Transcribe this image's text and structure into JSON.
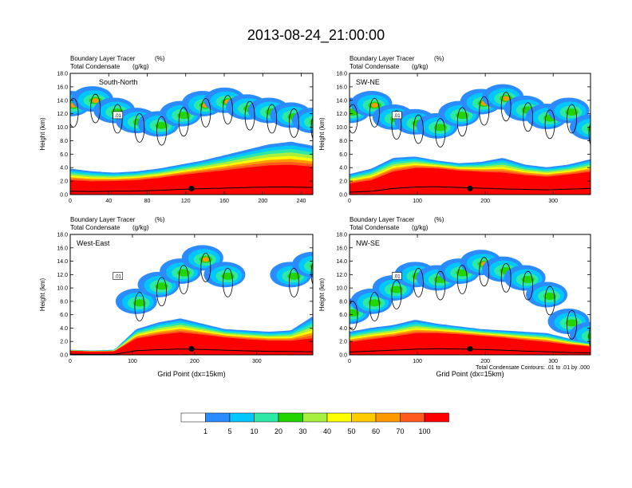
{
  "page_title": "2013-08-24_21:00:00",
  "chart_data": {
    "type": "heatmap",
    "title": "2013-08-24_21:00:00",
    "fill_variable": "Boundary Layer Tracer",
    "fill_units": "(%)",
    "contour_variable": "Total Condensate",
    "contour_units": "(g/kg)",
    "ylabel": "Height (km)",
    "xlabel": "Grid Point (dx=15km)",
    "ylim": [
      0,
      18
    ],
    "y_ticks": [
      "0.0",
      "2.0",
      "4.0",
      "6.0",
      "8.0",
      "10.0",
      "12.0",
      "14.0",
      "16.0",
      "18.0"
    ],
    "contour_note": "Total Condensate Contours: .01 to .01 by .000",
    "contour_label": ".01",
    "colorbar": {
      "levels": [
        "1",
        "5",
        "10",
        "20",
        "30",
        "40",
        "50",
        "60",
        "70",
        "100"
      ],
      "colors": [
        "#ffffff",
        "#2b8cff",
        "#00c8ff",
        "#2ee8a8",
        "#22d400",
        "#a8f040",
        "#ffff00",
        "#ffcc00",
        "#ff9900",
        "#ff5a1e",
        "#ff0000"
      ]
    },
    "panels": [
      {
        "id": "south-north",
        "name": "South-North",
        "var1": "Boundary Layer Tracer",
        "var1_units": "(%)",
        "var2": "Total Condensate",
        "var2_units": "(g/kg)",
        "xlim": [
          0,
          252
        ],
        "x_ticks": [
          "0",
          "40",
          "80",
          "120",
          "160",
          "200",
          "240"
        ],
        "surface_height_km": [
          1.4,
          1.3,
          1.4,
          1.5,
          1.8,
          2.2,
          2.5,
          2.7,
          3.0,
          3.2,
          3.2,
          3.0
        ],
        "tracer_top_km": [
          3.6,
          3.2,
          3.0,
          3.2,
          3.6,
          4.2,
          4.8,
          5.6,
          6.4,
          7.2,
          7.6,
          7.0
        ],
        "upper_cloud_km": [
          13.5,
          14.2,
          12.5,
          11.0,
          10.5,
          12.0,
          13.5,
          14.0,
          13.0,
          12.5,
          11.8,
          11.0
        ],
        "show_xlabel": false
      },
      {
        "id": "sw-ne",
        "name": "SW-NE",
        "var1": "Boundary Layer Tracer",
        "var1_units": "(%)",
        "var2": "Total Condensate",
        "var2_units": "(g/kg)",
        "xlim": [
          0,
          355
        ],
        "x_ticks": [
          "0",
          "100",
          "200",
          "300"
        ],
        "surface_height_km": [
          1.0,
          1.4,
          2.6,
          3.2,
          3.3,
          3.0,
          2.7,
          2.4,
          2.2,
          2.0,
          2.3,
          2.6
        ],
        "tracer_top_km": [
          2.8,
          3.6,
          5.2,
          5.4,
          4.8,
          4.4,
          4.6,
          5.2,
          4.2,
          3.8,
          4.2,
          5.0
        ],
        "upper_cloud_km": [
          12.5,
          13.5,
          11.5,
          10.8,
          10.2,
          12.0,
          13.8,
          14.5,
          12.8,
          11.6,
          12.5,
          10.0
        ],
        "show_xlabel": false
      },
      {
        "id": "west-east",
        "name": "West-East",
        "var1": "Boundary Layer Tracer",
        "var1_units": "(%)",
        "var2": "Total Condensate",
        "var2_units": "(g/kg)",
        "xlim": [
          0,
          390
        ],
        "x_ticks": [
          "0",
          "100",
          "200",
          "300"
        ],
        "surface_height_km": [
          0.3,
          0.2,
          0.2,
          1.8,
          2.2,
          2.5,
          2.3,
          2.0,
          1.7,
          1.5,
          1.4,
          1.3
        ],
        "tracer_top_km": [
          0.5,
          0.4,
          0.5,
          3.6,
          4.6,
          5.2,
          4.4,
          3.6,
          3.4,
          3.2,
          3.4,
          5.5
        ],
        "upper_cloud_km": [
          0,
          0,
          0,
          8.0,
          10.5,
          12.5,
          14.5,
          12.0,
          0,
          0,
          12.0,
          13.5
        ],
        "show_xlabel": true
      },
      {
        "id": "nw-se",
        "name": "NW-SE",
        "var1": "Boundary Layer Tracer",
        "var1_units": "(%)",
        "var2": "Total Condensate",
        "var2_units": "(g/kg)",
        "xlim": [
          0,
          355
        ],
        "x_ticks": [
          "0",
          "100",
          "200",
          "300"
        ],
        "surface_height_km": [
          1.2,
          1.6,
          2.0,
          2.4,
          2.6,
          2.5,
          2.3,
          2.0,
          1.6,
          1.3,
          1.0,
          0.8
        ],
        "tracer_top_km": [
          3.2,
          3.8,
          4.2,
          5.0,
          4.4,
          4.0,
          3.6,
          3.4,
          3.2,
          3.0,
          2.2,
          1.6
        ],
        "upper_cloud_km": [
          6.5,
          8.0,
          10.0,
          12.0,
          11.5,
          12.5,
          13.8,
          12.8,
          11.5,
          9.0,
          5.0,
          3.0
        ],
        "show_xlabel": true
      }
    ]
  }
}
